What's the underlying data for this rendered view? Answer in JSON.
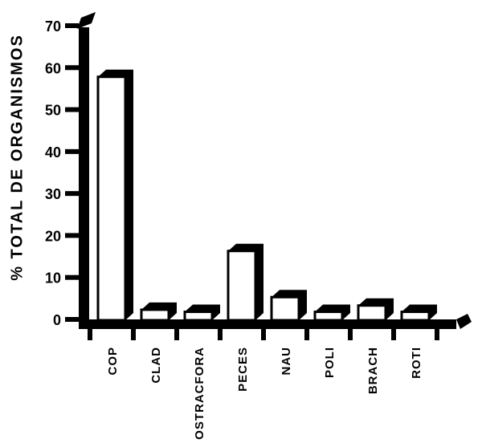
{
  "colors": {
    "background": "#ffffff",
    "bar_face": "#ffffff",
    "bar_shadow": "#000000",
    "axis": "#000000",
    "text": "#000000"
  },
  "chart_data": {
    "type": "bar",
    "title": "",
    "xlabel": "",
    "ylabel": "% TOTAL DE ORGANISMOS",
    "categories": [
      "COP",
      "CLAD",
      "OSTRACFORA",
      "PECES",
      "NAU",
      "POLI",
      "BRACH",
      "ROTI"
    ],
    "values": [
      58,
      2.5,
      2,
      16.5,
      5.5,
      2,
      3.5,
      2
    ],
    "ylim": [
      0,
      70
    ],
    "yticks": [
      0,
      10,
      20,
      30,
      40,
      50,
      60,
      70
    ],
    "grid": false,
    "legend": false,
    "style": "3d-extruded, black shadow faces, white bar fronts, scanned monochrome look"
  }
}
